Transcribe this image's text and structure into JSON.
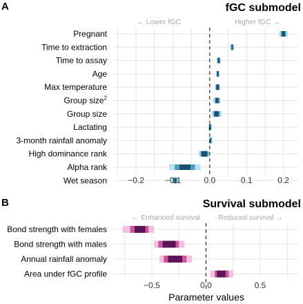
{
  "chart_data": [
    {
      "panel": "A",
      "title": "fGC submodel",
      "type": "interval",
      "direction_labels": {
        "left": "← Lower fGC",
        "right": "Higher fGC →"
      },
      "xticks": [
        -0.2,
        -0.1,
        0.0,
        0.1,
        0.2
      ],
      "tick_labels": [
        "−0.2",
        "−0.1",
        "0.0",
        "0.1",
        "0.2"
      ],
      "xlim": [
        -0.26,
        0.24
      ],
      "colors": {
        "outer": "#b9e0ee",
        "middle": "#4d9fc0",
        "inner": "#1e4f70"
      },
      "items": [
        {
          "label": "Pregnant",
          "superscript": "",
          "outer": [
            0.188,
            0.212
          ],
          "middle": [
            0.193,
            0.207
          ],
          "inner": [
            0.196,
            0.204
          ]
        },
        {
          "label": "Time to extraction",
          "superscript": "",
          "outer": [
            0.055,
            0.067
          ],
          "middle": [
            0.058,
            0.064
          ],
          "inner": [
            0.059,
            0.063
          ]
        },
        {
          "label": "Time to assay",
          "superscript": "",
          "outer": [
            0.018,
            0.03
          ],
          "middle": [
            0.021,
            0.028
          ],
          "inner": [
            0.022,
            0.027
          ]
        },
        {
          "label": "Age",
          "superscript": "",
          "outer": [
            0.017,
            0.027
          ],
          "middle": [
            0.019,
            0.025
          ],
          "inner": [
            0.02,
            0.024
          ]
        },
        {
          "label": "Max temperature",
          "superscript": "",
          "outer": [
            0.014,
            0.029
          ],
          "middle": [
            0.017,
            0.026
          ],
          "inner": [
            0.018,
            0.025
          ]
        },
        {
          "label": "Group size",
          "superscript": "2",
          "outer": [
            0.01,
            0.03
          ],
          "middle": [
            0.014,
            0.026
          ],
          "inner": [
            0.016,
            0.024
          ]
        },
        {
          "label": "Group size",
          "superscript": "",
          "outer": [
            0.005,
            0.032
          ],
          "middle": [
            0.01,
            0.027
          ],
          "inner": [
            0.013,
            0.024
          ]
        },
        {
          "label": "Lactating",
          "superscript": "",
          "outer": [
            -0.004,
            0.006
          ],
          "middle": [
            -0.002,
            0.004
          ],
          "inner": [
            -0.001,
            0.003
          ]
        },
        {
          "label": "3-month rainfall anomaly",
          "superscript": "",
          "outer": [
            -0.002,
            0.007
          ],
          "middle": [
            0.0,
            0.005
          ],
          "inner": [
            0.001,
            0.004
          ]
        },
        {
          "label": "High dominance rank",
          "superscript": "",
          "outer": [
            -0.03,
            0.001
          ],
          "middle": [
            -0.025,
            -0.004
          ],
          "inner": [
            -0.022,
            -0.007
          ]
        },
        {
          "label": "Alpha rank",
          "superscript": "",
          "outer": [
            -0.11,
            -0.025
          ],
          "middle": [
            -0.095,
            -0.04
          ],
          "inner": [
            -0.082,
            -0.052
          ]
        },
        {
          "label": "Wet season",
          "superscript": "",
          "outer": [
            -0.104,
            -0.083
          ],
          "middle": [
            -0.099,
            -0.088
          ],
          "inner": [
            -0.096,
            -0.091
          ]
        }
      ]
    },
    {
      "panel": "B",
      "title": "Survival submodel",
      "type": "interval",
      "direction_labels": {
        "left": "← Enhanced survival",
        "right": "Reduced survival →"
      },
      "xticks": [
        -0.5,
        0.0,
        0.5
      ],
      "tick_labels": [
        "−0.5",
        "0.0",
        "0.5"
      ],
      "xlim": [
        -0.85,
        0.85
      ],
      "xlabel": "Parameter values",
      "colors": {
        "outer": "#f4c0dd",
        "middle": "#c9569a",
        "inner": "#5b1456"
      },
      "items": [
        {
          "label": "Bond strength with females",
          "superscript": "",
          "outer": [
            -0.77,
            -0.48
          ],
          "middle": [
            -0.7,
            -0.53
          ],
          "inner": [
            -0.66,
            -0.56
          ]
        },
        {
          "label": "Bond strength with males",
          "superscript": "",
          "outer": [
            -0.48,
            -0.2
          ],
          "middle": [
            -0.44,
            -0.25
          ],
          "inner": [
            -0.4,
            -0.28
          ]
        },
        {
          "label": "Annual rainfall anomaly",
          "superscript": "",
          "outer": [
            -0.43,
            -0.13
          ],
          "middle": [
            -0.39,
            -0.18
          ],
          "inner": [
            -0.35,
            -0.22
          ]
        },
        {
          "label": "Area under fGC profile",
          "superscript": "",
          "outer": [
            0.04,
            0.25
          ],
          "middle": [
            0.08,
            0.21
          ],
          "inner": [
            0.1,
            0.18
          ]
        }
      ]
    }
  ]
}
